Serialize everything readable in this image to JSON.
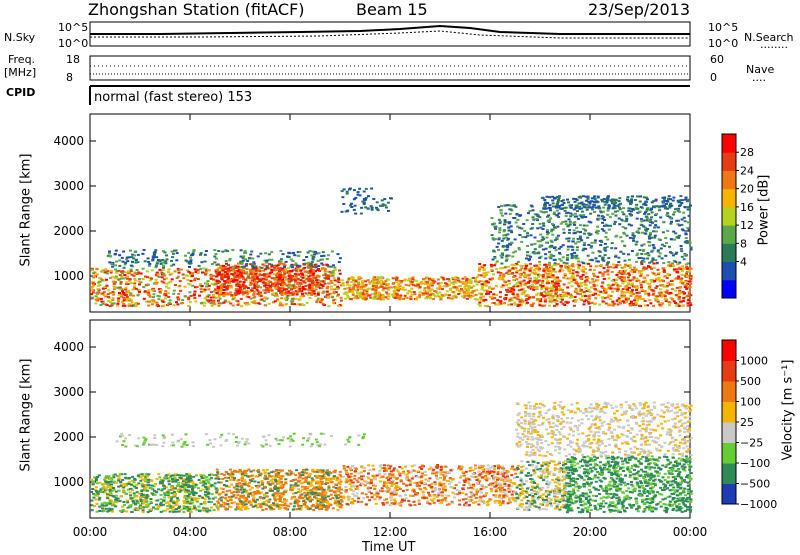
{
  "header": {
    "station": "Zhongshan Station (fitACF)",
    "beam": "Beam 15",
    "date": "23/Sep/2013"
  },
  "top_panel": {
    "left_label": "N.Sky",
    "left_ticks": [
      "10^5",
      "10^0"
    ],
    "right_label": "N.Search",
    "right_ticks": [
      "10^5",
      "10^0"
    ],
    "right_legend": "........"
  },
  "freq_panel": {
    "left_label_1": "Freq.",
    "left_label_2": "[MHz]",
    "left_ticks": [
      "18",
      "8"
    ],
    "right_label": "Nave",
    "right_ticks": [
      "60",
      "0"
    ],
    "right_legend": "....",
    "cpid_label": "CPID",
    "cpid_text": "normal (fast stereo) 153"
  },
  "chart_data": [
    {
      "type": "heatmap",
      "name": "power-panel",
      "ylabel": "Slant Range [km]",
      "yticks": [
        "4000",
        "3000",
        "2000",
        "1000"
      ],
      "ytick_values": [
        4000,
        3000,
        2000,
        1000
      ],
      "ylim": [
        200,
        4600
      ],
      "xlim_hours": [
        0,
        24
      ],
      "colorbar": {
        "label": "Power [dB]",
        "ticks": [
          "28",
          "24",
          "20",
          "16",
          "12",
          "8",
          "4"
        ],
        "colors": [
          "#0000ff",
          "#1e4fae",
          "#2b7a5a",
          "#5aa84a",
          "#b4d21e",
          "#f5b400",
          "#f07814",
          "#e63c14",
          "#ff0000"
        ]
      }
    },
    {
      "type": "heatmap",
      "name": "velocity-panel",
      "ylabel": "Slant Range [km]",
      "yticks": [
        "4000",
        "3000",
        "2000",
        "1000"
      ],
      "ytick_values": [
        4000,
        3000,
        2000,
        1000
      ],
      "ylim": [
        200,
        4600
      ],
      "xlim_hours": [
        0,
        24
      ],
      "colorbar": {
        "label": "Velocity [m s⁻¹]",
        "ticks": [
          "1000",
          "500",
          "100",
          "25",
          "−25",
          "−100",
          "−500",
          "−1000"
        ],
        "colors": [
          "#1e3cb4",
          "#2e8b57",
          "#66cc33",
          "#c8c8c8",
          "#f5b400",
          "#f07814",
          "#e63c14",
          "#ff0000"
        ]
      }
    }
  ],
  "xaxis": {
    "ticks": [
      "00:00",
      "04:00",
      "08:00",
      "12:00",
      "16:00",
      "20:00",
      "00:00"
    ],
    "tick_hours": [
      0,
      4,
      8,
      12,
      16,
      20,
      24
    ],
    "label": "Time UT"
  }
}
